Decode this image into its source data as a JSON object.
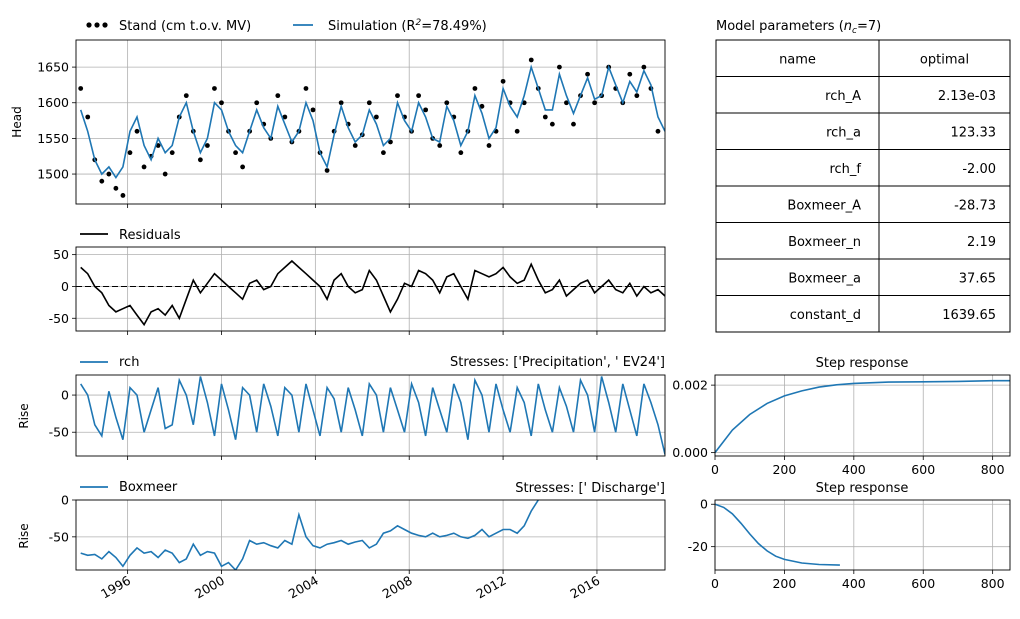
{
  "colors": {
    "series": "#1f77b4",
    "obs": "#000000",
    "grid": "#b0b0b0"
  },
  "x_ticks": [
    "1996",
    "2000",
    "2004",
    "2008",
    "2012",
    "2016"
  ],
  "chart_data": [
    {
      "id": "head",
      "type": "line",
      "ylabel": "Head",
      "x_range": [
        1993.8,
        2018.9
      ],
      "ylim": [
        1458,
        1688
      ],
      "yticks": [
        1500,
        1550,
        1600,
        1650
      ],
      "grid": true,
      "legend": [
        "Stand (cm t.o.v. MV)",
        "Simulation (R"
      ],
      "legend_sup": "2",
      "legend_tail": "=78.49%)",
      "legend_placement": "top-left",
      "series": [
        {
          "name": "Stand (cm t.o.v. MV)",
          "style": "dots",
          "x": [
            1994.0,
            1994.3,
            1994.6,
            1994.9,
            1995.2,
            1995.5,
            1995.8,
            1996.1,
            1996.4,
            1996.7,
            1997.0,
            1997.3,
            1997.6,
            1997.9,
            1998.2,
            1998.5,
            1998.8,
            1999.1,
            1999.4,
            1999.7,
            2000.0,
            2000.3,
            2000.6,
            2000.9,
            2001.2,
            2001.5,
            2001.8,
            2002.1,
            2002.4,
            2002.7,
            2003.0,
            2003.3,
            2003.6,
            2003.9,
            2004.2,
            2004.5,
            2004.8,
            2005.1,
            2005.4,
            2005.7,
            2006.0,
            2006.3,
            2006.6,
            2006.9,
            2007.2,
            2007.5,
            2007.8,
            2008.1,
            2008.4,
            2008.7,
            2009.0,
            2009.3,
            2009.6,
            2009.9,
            2010.2,
            2010.5,
            2010.8,
            2011.1,
            2011.4,
            2011.7,
            2012.0,
            2012.3,
            2012.6,
            2012.9,
            2013.2,
            2013.5,
            2013.8,
            2014.1,
            2014.4,
            2014.7,
            2015.0,
            2015.3,
            2015.6,
            2015.9,
            2016.2,
            2016.5,
            2016.8,
            2017.1,
            2017.4,
            2017.7,
            2018.0,
            2018.3,
            2018.6
          ],
          "y": [
            1620,
            1580,
            1520,
            1490,
            1500,
            1480,
            1470,
            1530,
            1560,
            1510,
            1525,
            1540,
            1500,
            1530,
            1580,
            1610,
            1560,
            1520,
            1540,
            1620,
            1600,
            1560,
            1530,
            1510,
            1560,
            1600,
            1570,
            1550,
            1610,
            1580,
            1545,
            1560,
            1620,
            1590,
            1530,
            1505,
            1560,
            1600,
            1570,
            1540,
            1555,
            1600,
            1580,
            1530,
            1545,
            1610,
            1580,
            1560,
            1610,
            1590,
            1550,
            1540,
            1600,
            1580,
            1530,
            1560,
            1620,
            1595,
            1540,
            1560,
            1630,
            1600,
            1560,
            1600,
            1660,
            1620,
            1580,
            1570,
            1650,
            1600,
            1570,
            1610,
            1640,
            1600,
            1610,
            1650,
            1620,
            1600,
            1640,
            1610,
            1650,
            1620,
            1560
          ]
        },
        {
          "name": "Simulation (R²=78.49%)",
          "style": "line",
          "x": [
            1994.0,
            1994.3,
            1994.6,
            1994.9,
            1995.2,
            1995.5,
            1995.8,
            1996.1,
            1996.4,
            1996.7,
            1997.0,
            1997.3,
            1997.6,
            1997.9,
            1998.2,
            1998.5,
            1998.8,
            1999.1,
            1999.4,
            1999.7,
            2000.0,
            2000.3,
            2000.6,
            2000.9,
            2001.2,
            2001.5,
            2001.8,
            2002.1,
            2002.4,
            2002.7,
            2003.0,
            2003.3,
            2003.6,
            2003.9,
            2004.2,
            2004.5,
            2004.8,
            2005.1,
            2005.4,
            2005.7,
            2006.0,
            2006.3,
            2006.6,
            2006.9,
            2007.2,
            2007.5,
            2007.8,
            2008.1,
            2008.4,
            2008.7,
            2009.0,
            2009.3,
            2009.6,
            2009.9,
            2010.2,
            2010.5,
            2010.8,
            2011.1,
            2011.4,
            2011.7,
            2012.0,
            2012.3,
            2012.6,
            2012.9,
            2013.2,
            2013.5,
            2013.8,
            2014.1,
            2014.4,
            2014.7,
            2015.0,
            2015.3,
            2015.6,
            2015.9,
            2016.2,
            2016.5,
            2016.8,
            2017.1,
            2017.4,
            2017.7,
            2018.0,
            2018.3,
            2018.6,
            2018.9
          ],
          "y": [
            1590,
            1560,
            1520,
            1500,
            1510,
            1495,
            1510,
            1560,
            1580,
            1540,
            1520,
            1550,
            1530,
            1540,
            1580,
            1600,
            1560,
            1530,
            1550,
            1600,
            1590,
            1560,
            1540,
            1530,
            1560,
            1590,
            1565,
            1550,
            1595,
            1570,
            1545,
            1560,
            1600,
            1575,
            1530,
            1510,
            1555,
            1595,
            1565,
            1545,
            1555,
            1590,
            1570,
            1540,
            1550,
            1600,
            1575,
            1560,
            1600,
            1580,
            1550,
            1545,
            1595,
            1575,
            1540,
            1560,
            1610,
            1585,
            1550,
            1565,
            1620,
            1595,
            1580,
            1610,
            1650,
            1620,
            1590,
            1590,
            1640,
            1610,
            1585,
            1610,
            1635,
            1605,
            1610,
            1650,
            1625,
            1600,
            1630,
            1615,
            1645,
            1625,
            1580,
            1560
          ]
        }
      ]
    },
    {
      "id": "residuals",
      "type": "line",
      "x_range": [
        1993.8,
        2018.9
      ],
      "ylim": [
        -70,
        62
      ],
      "yticks": [
        -50,
        0,
        50
      ],
      "grid": true,
      "zero_line": "dashed",
      "legend": [
        "Residuals"
      ],
      "legend_placement": "top-left",
      "series": [
        {
          "name": "Residuals",
          "x": [
            1994.0,
            1994.3,
            1994.6,
            1994.9,
            1995.2,
            1995.5,
            1995.8,
            1996.1,
            1996.4,
            1996.7,
            1997.0,
            1997.3,
            1997.6,
            1997.9,
            1998.2,
            1998.5,
            1998.8,
            1999.1,
            1999.4,
            1999.7,
            2000.0,
            2000.3,
            2000.6,
            2000.9,
            2001.2,
            2001.5,
            2001.8,
            2002.1,
            2002.4,
            2002.7,
            2003.0,
            2003.3,
            2003.6,
            2003.9,
            2004.2,
            2004.5,
            2004.8,
            2005.1,
            2005.4,
            2005.7,
            2006.0,
            2006.3,
            2006.6,
            2006.9,
            2007.2,
            2007.5,
            2007.8,
            2008.1,
            2008.4,
            2008.7,
            2009.0,
            2009.3,
            2009.6,
            2009.9,
            2010.2,
            2010.5,
            2010.8,
            2011.1,
            2011.4,
            2011.7,
            2012.0,
            2012.3,
            2012.6,
            2012.9,
            2013.2,
            2013.5,
            2013.8,
            2014.1,
            2014.4,
            2014.7,
            2015.0,
            2015.3,
            2015.6,
            2015.9,
            2016.2,
            2016.5,
            2016.8,
            2017.1,
            2017.4,
            2017.7,
            2018.0,
            2018.3,
            2018.6,
            2018.9
          ],
          "y": [
            30,
            20,
            0,
            -10,
            -30,
            -40,
            -35,
            -30,
            -45,
            -60,
            -40,
            -35,
            -45,
            -30,
            -50,
            -20,
            10,
            -10,
            5,
            20,
            10,
            0,
            -10,
            -20,
            5,
            10,
            -5,
            0,
            20,
            30,
            40,
            30,
            20,
            10,
            0,
            -20,
            10,
            20,
            0,
            -10,
            -5,
            25,
            10,
            -15,
            -40,
            -20,
            5,
            0,
            25,
            20,
            10,
            -10,
            15,
            20,
            0,
            -20,
            25,
            20,
            15,
            20,
            30,
            15,
            5,
            10,
            35,
            10,
            -10,
            -5,
            10,
            -15,
            -5,
            5,
            10,
            -10,
            0,
            10,
            -5,
            -10,
            5,
            -15,
            0,
            -10,
            -5,
            -15
          ]
        }
      ]
    },
    {
      "id": "rch",
      "type": "line",
      "ylabel": "Rise",
      "x_range": [
        1993.8,
        2018.9
      ],
      "ylim": [
        -82,
        27
      ],
      "yticks": [
        -50,
        0
      ],
      "grid": true,
      "legend": [
        "rch"
      ],
      "legend_placement": "top-left",
      "subtitle": "Stresses: ['Precipitation', ' EV24']",
      "series": [
        {
          "name": "rch",
          "x": [
            1994.0,
            1994.3,
            1994.6,
            1994.9,
            1995.2,
            1995.5,
            1995.8,
            1996.1,
            1996.4,
            1996.7,
            1997.0,
            1997.3,
            1997.6,
            1997.9,
            1998.2,
            1998.5,
            1998.8,
            1999.1,
            1999.4,
            1999.7,
            2000.0,
            2000.3,
            2000.6,
            2000.9,
            2001.2,
            2001.5,
            2001.8,
            2002.1,
            2002.4,
            2002.7,
            2003.0,
            2003.3,
            2003.6,
            2003.9,
            2004.2,
            2004.5,
            2004.8,
            2005.1,
            2005.4,
            2005.7,
            2006.0,
            2006.3,
            2006.6,
            2006.9,
            2007.2,
            2007.5,
            2007.8,
            2008.1,
            2008.4,
            2008.7,
            2009.0,
            2009.3,
            2009.6,
            2009.9,
            2010.2,
            2010.5,
            2010.8,
            2011.1,
            2011.4,
            2011.7,
            2012.0,
            2012.3,
            2012.6,
            2012.9,
            2013.2,
            2013.5,
            2013.8,
            2014.1,
            2014.4,
            2014.7,
            2015.0,
            2015.3,
            2015.6,
            2015.9,
            2016.2,
            2016.5,
            2016.8,
            2017.1,
            2017.4,
            2017.7,
            2018.0,
            2018.3,
            2018.6,
            2018.9
          ],
          "y": [
            15,
            0,
            -40,
            -55,
            5,
            -30,
            -60,
            10,
            0,
            -50,
            -20,
            10,
            -45,
            -40,
            20,
            0,
            -40,
            25,
            -10,
            -55,
            15,
            -20,
            -60,
            10,
            0,
            -50,
            15,
            -15,
            -55,
            10,
            0,
            -50,
            15,
            -20,
            -55,
            10,
            -5,
            -50,
            10,
            -20,
            -55,
            15,
            0,
            -50,
            10,
            -20,
            -50,
            15,
            -10,
            -55,
            10,
            -20,
            -50,
            15,
            -10,
            -60,
            20,
            0,
            -50,
            15,
            -20,
            -50,
            10,
            -10,
            -55,
            15,
            -20,
            -50,
            10,
            -15,
            -50,
            20,
            0,
            -50,
            25,
            -10,
            -50,
            15,
            -20,
            -55,
            15,
            -10,
            -40,
            -80
          ]
        }
      ]
    },
    {
      "id": "boxmeer",
      "type": "line",
      "ylabel": "Rise",
      "x_range": [
        1993.8,
        2018.9
      ],
      "ylim": [
        -95,
        0
      ],
      "yticks": [
        -50,
        0
      ],
      "grid": true,
      "legend": [
        "Boxmeer"
      ],
      "legend_placement": "top-left",
      "subtitle": "Stresses: [' Discharge']",
      "series": [
        {
          "name": "Boxmeer",
          "x": [
            1994.0,
            1994.3,
            1994.6,
            1994.9,
            1995.2,
            1995.5,
            1995.8,
            1996.1,
            1996.4,
            1996.7,
            1997.0,
            1997.3,
            1997.6,
            1997.9,
            1998.2,
            1998.5,
            1998.8,
            1999.1,
            1999.4,
            1999.7,
            2000.0,
            2000.3,
            2000.6,
            2000.9,
            2001.2,
            2001.5,
            2001.8,
            2002.1,
            2002.4,
            2002.7,
            2003.0,
            2003.3,
            2003.6,
            2003.9,
            2004.2,
            2004.5,
            2004.8,
            2005.1,
            2005.4,
            2005.7,
            2006.0,
            2006.3,
            2006.6,
            2006.9,
            2007.2,
            2007.5,
            2007.8,
            2008.1,
            2008.4,
            2008.7,
            2009.0,
            2009.3,
            2009.6,
            2009.9,
            2010.2,
            2010.5,
            2010.8,
            2011.1,
            2011.4,
            2011.7,
            2012.0,
            2012.3,
            2012.6,
            2012.9,
            2013.2,
            2013.5
          ],
          "y": [
            -72,
            -75,
            -74,
            -80,
            -70,
            -78,
            -90,
            -75,
            -65,
            -72,
            -70,
            -78,
            -68,
            -72,
            -85,
            -80,
            -60,
            -75,
            -70,
            -72,
            -90,
            -85,
            -95,
            -80,
            -55,
            -60,
            -58,
            -62,
            -65,
            -55,
            -60,
            -20,
            -50,
            -62,
            -65,
            -60,
            -58,
            -55,
            -60,
            -57,
            -55,
            -65,
            -60,
            -45,
            -42,
            -35,
            -40,
            -45,
            -48,
            -50,
            -45,
            -50,
            -48,
            -45,
            -50,
            -52,
            -48,
            -40,
            -50,
            -45,
            -40,
            -40,
            -45,
            -35,
            -15,
            0
          ]
        }
      ]
    },
    {
      "id": "step-rch",
      "type": "line",
      "title": "Step response",
      "x_range": [
        0,
        850
      ],
      "ylim": [
        -0.0001,
        0.0023
      ],
      "yticks": [
        "0.000",
        "0.002"
      ],
      "xticks": [
        0,
        200,
        400,
        600,
        800
      ],
      "grid": true,
      "series": [
        {
          "x": [
            0,
            50,
            100,
            150,
            200,
            250,
            300,
            350,
            400,
            500,
            600,
            700,
            800,
            850
          ],
          "y": [
            0.0,
            0.00067,
            0.00113,
            0.00146,
            0.00168,
            0.00183,
            0.00194,
            0.00201,
            0.00205,
            0.00209,
            0.0021,
            0.00211,
            0.00213,
            0.00213
          ]
        }
      ]
    },
    {
      "id": "step-boxmeer",
      "type": "line",
      "title": "Step response",
      "x_range": [
        0,
        850
      ],
      "ylim": [
        -31,
        2
      ],
      "yticks": [
        -20,
        0
      ],
      "xticks": [
        0,
        200,
        400,
        600,
        800
      ],
      "grid": true,
      "series": [
        {
          "x": [
            0,
            25,
            50,
            75,
            100,
            125,
            150,
            175,
            200,
            250,
            300,
            360
          ],
          "y": [
            0,
            -1.5,
            -4.5,
            -9,
            -14,
            -18.5,
            -22,
            -24.5,
            -26,
            -27.7,
            -28.4,
            -28.7
          ]
        }
      ]
    }
  ],
  "params_table": {
    "title_prefix": "Model parameters (",
    "title_var": "n",
    "title_sub": "c",
    "title_suffix": "=7)",
    "headers": [
      "name",
      "optimal"
    ],
    "rows": [
      [
        "rch_A",
        "2.13e-03"
      ],
      [
        "rch_a",
        "123.33"
      ],
      [
        "rch_f",
        "-2.00"
      ],
      [
        "Boxmeer_A",
        "-28.73"
      ],
      [
        "Boxmeer_n",
        "2.19"
      ],
      [
        "Boxmeer_a",
        "37.65"
      ],
      [
        "constant_d",
        "1639.65"
      ]
    ]
  }
}
